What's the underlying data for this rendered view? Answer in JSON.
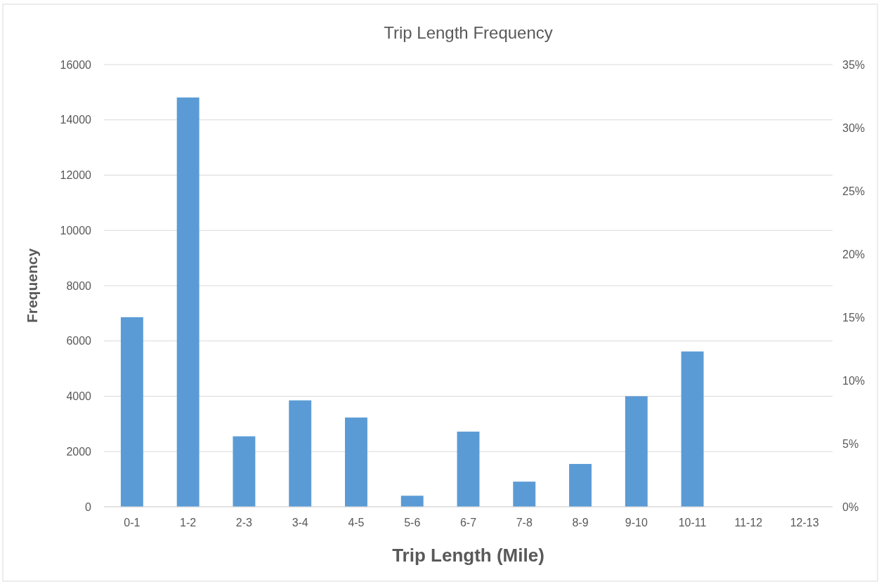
{
  "chart_data": {
    "type": "bar",
    "title": "Trip Length Frequency",
    "xlabel": "Trip Length (Mile)",
    "ylabel": "Frequency",
    "categories": [
      "0-1",
      "1-2",
      "2-3",
      "3-4",
      "4-5",
      "5-6",
      "6-7",
      "7-8",
      "8-9",
      "9-10",
      "10-11",
      "11-12",
      "12-13"
    ],
    "values": [
      6860,
      14810,
      2550,
      3850,
      3230,
      400,
      2720,
      910,
      1550,
      4000,
      5620,
      0,
      0
    ],
    "color": "#5b9bd5",
    "ylim": [
      0,
      16000
    ],
    "yticks": [
      0,
      2000,
      4000,
      6000,
      8000,
      10000,
      12000,
      14000,
      16000
    ],
    "y2lim": [
      0,
      35
    ],
    "y2ticks": [
      {
        "value": 0,
        "label": "0%"
      },
      {
        "value": 5,
        "label": "5%"
      },
      {
        "value": 10,
        "label": "10%"
      },
      {
        "value": 15,
        "label": "15%"
      },
      {
        "value": 20,
        "label": "20%"
      },
      {
        "value": 25,
        "label": "25%"
      },
      {
        "value": 30,
        "label": "30%"
      },
      {
        "value": 35,
        "label": "35%"
      }
    ],
    "grid": "y"
  }
}
